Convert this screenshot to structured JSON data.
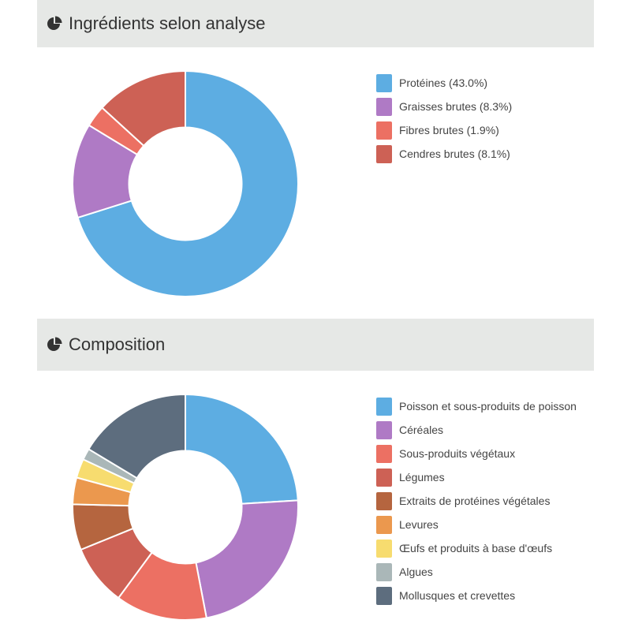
{
  "sections": [
    {
      "title": "Ingrédients selon analyse",
      "icon": "pie-chart-icon"
    },
    {
      "title": "Composition",
      "icon": "pie-chart-icon"
    }
  ],
  "chart_data": [
    {
      "type": "pie",
      "title": "Ingrédients selon analyse",
      "donut": true,
      "legend_position": "right",
      "categories": [
        "Protéines",
        "Graisses brutes",
        "Fibres brutes",
        "Cendres brutes"
      ],
      "labels": [
        "Protéines (43.0%)",
        "Graisses brutes (8.3%)",
        "Fibres brutes (1.9%)",
        "Cendres brutes (8.1%)"
      ],
      "values": [
        43.0,
        8.3,
        1.9,
        8.1
      ],
      "colors": [
        "#5dade2",
        "#af7ac5",
        "#ec7063",
        "#cd6155"
      ]
    },
    {
      "type": "pie",
      "title": "Composition",
      "donut": true,
      "legend_position": "right",
      "categories": [
        "Poisson et sous-produits de poisson",
        "Céréales",
        "Sous-produits végétaux",
        "Légumes",
        "Extraits de protéines végétales",
        "Levures",
        "Œufs et produits à base d'œufs",
        "Algues",
        "Mollusques et crevettes"
      ],
      "labels": [
        "Poisson et sous-produits de poisson",
        "Céréales",
        "Sous-produits végétaux",
        "Légumes",
        "Extraits de protéines végétales",
        "Levures",
        "Œufs et produits à base d'œufs",
        "Algues",
        "Mollusques et crevettes"
      ],
      "values": [
        22,
        21,
        12,
        8,
        6,
        3.5,
        2.5,
        1.5,
        15
      ],
      "colors": [
        "#5dade2",
        "#af7ac5",
        "#ec7063",
        "#cd6155",
        "#b5653f",
        "#eb984e",
        "#f7dc6f",
        "#aab7b8",
        "#5d6d7e"
      ]
    }
  ]
}
